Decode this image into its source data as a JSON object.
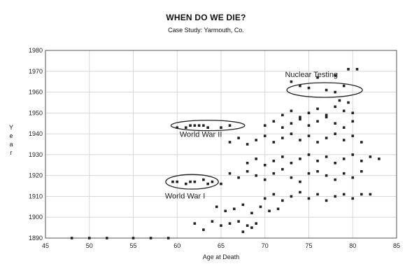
{
  "chart_data": {
    "type": "scatter",
    "title": "WHEN DO WE DIE?",
    "subtitle": "Case Study: Yarmouth, Co.",
    "xlabel": "Age at Death",
    "ylabel": "Year",
    "xlim": [
      45,
      85
    ],
    "ylim": [
      1890,
      1980
    ],
    "xticks": [
      "45",
      "50",
      "55",
      "60",
      "65",
      "70",
      "75",
      "80",
      "85"
    ],
    "yticks": [
      "1890",
      "1900",
      "1910",
      "1920",
      "1930",
      "1940",
      "1950",
      "1960",
      "1970",
      "1980"
    ],
    "grid": true,
    "marker_color": "#222222",
    "annotations": [
      {
        "text": "Nuclear Testing",
        "ellipse_center": [
          76.8,
          1961
        ],
        "ellipse_radii": [
          4.3,
          3.5
        ]
      },
      {
        "text": "World War II",
        "ellipse_center": [
          63.5,
          1944
        ],
        "ellipse_radii": [
          4.2,
          2.5
        ]
      },
      {
        "text": "World War I",
        "ellipse_center": [
          61.7,
          1917
        ],
        "ellipse_radii": [
          3.0,
          3.5
        ]
      }
    ],
    "points": [
      [
        48,
        1890
      ],
      [
        50,
        1890
      ],
      [
        52,
        1890
      ],
      [
        55,
        1890
      ],
      [
        57,
        1890
      ],
      [
        59,
        1890
      ],
      [
        73,
        1965
      ],
      [
        74,
        1963
      ],
      [
        75,
        1962
      ],
      [
        76,
        1967
      ],
      [
        77,
        1961
      ],
      [
        78,
        1960
      ],
      [
        79,
        1963
      ],
      [
        79.5,
        1971
      ],
      [
        80.5,
        1971
      ],
      [
        78,
        1968
      ],
      [
        60,
        1943
      ],
      [
        61,
        1943
      ],
      [
        61.5,
        1944
      ],
      [
        62,
        1944
      ],
      [
        62.5,
        1944
      ],
      [
        63,
        1944
      ],
      [
        63.5,
        1943
      ],
      [
        65,
        1943
      ],
      [
        66,
        1944
      ],
      [
        59.5,
        1917
      ],
      [
        60,
        1917
      ],
      [
        61,
        1916
      ],
      [
        61.5,
        1917
      ],
      [
        62,
        1917
      ],
      [
        63,
        1918
      ],
      [
        63.5,
        1916
      ],
      [
        64,
        1917
      ],
      [
        65,
        1916
      ],
      [
        62,
        1897
      ],
      [
        63,
        1894
      ],
      [
        64,
        1898
      ],
      [
        65,
        1896
      ],
      [
        66,
        1897
      ],
      [
        67,
        1898
      ],
      [
        68,
        1896
      ],
      [
        69,
        1897
      ],
      [
        68.5,
        1895
      ],
      [
        67.5,
        1893
      ],
      [
        64.5,
        1905
      ],
      [
        65.5,
        1903
      ],
      [
        66.5,
        1904
      ],
      [
        67.5,
        1906
      ],
      [
        68.5,
        1902
      ],
      [
        69.5,
        1905
      ],
      [
        70.5,
        1903
      ],
      [
        71.5,
        1904
      ],
      [
        70,
        1909
      ],
      [
        71,
        1911
      ],
      [
        72,
        1908
      ],
      [
        73,
        1910
      ],
      [
        74,
        1912
      ],
      [
        75,
        1909
      ],
      [
        76,
        1911
      ],
      [
        77,
        1908
      ],
      [
        78,
        1910
      ],
      [
        79,
        1911
      ],
      [
        80,
        1909
      ],
      [
        81,
        1911
      ],
      [
        82,
        1911
      ],
      [
        66,
        1921
      ],
      [
        67,
        1919
      ],
      [
        68,
        1922
      ],
      [
        69,
        1920
      ],
      [
        70,
        1918
      ],
      [
        71,
        1921
      ],
      [
        72,
        1923
      ],
      [
        73,
        1919
      ],
      [
        74,
        1917
      ],
      [
        75,
        1921
      ],
      [
        76,
        1922
      ],
      [
        77,
        1920
      ],
      [
        78,
        1918
      ],
      [
        79,
        1921
      ],
      [
        80,
        1919
      ],
      [
        81,
        1922
      ],
      [
        68,
        1926
      ],
      [
        69,
        1928
      ],
      [
        70,
        1925
      ],
      [
        71,
        1927
      ],
      [
        72,
        1929
      ],
      [
        73,
        1926
      ],
      [
        74,
        1928
      ],
      [
        75,
        1930
      ],
      [
        76,
        1927
      ],
      [
        77,
        1929
      ],
      [
        78,
        1926
      ],
      [
        79,
        1928
      ],
      [
        80,
        1930
      ],
      [
        81,
        1927
      ],
      [
        82,
        1929
      ],
      [
        83,
        1928
      ],
      [
        66,
        1936
      ],
      [
        67,
        1938
      ],
      [
        68,
        1935
      ],
      [
        69,
        1937
      ],
      [
        70,
        1939
      ],
      [
        71,
        1936
      ],
      [
        72,
        1938
      ],
      [
        73,
        1940
      ],
      [
        74,
        1937
      ],
      [
        75,
        1939
      ],
      [
        76,
        1936
      ],
      [
        77,
        1938
      ],
      [
        78,
        1940
      ],
      [
        79,
        1937
      ],
      [
        80,
        1939
      ],
      [
        81,
        1936
      ],
      [
        70,
        1944
      ],
      [
        71,
        1946
      ],
      [
        72,
        1943
      ],
      [
        73,
        1945
      ],
      [
        74,
        1947
      ],
      [
        75,
        1944
      ],
      [
        76,
        1946
      ],
      [
        77,
        1948
      ],
      [
        78,
        1945
      ],
      [
        79,
        1943
      ],
      [
        80,
        1946
      ],
      [
        72,
        1949
      ],
      [
        73,
        1951
      ],
      [
        74,
        1948
      ],
      [
        75,
        1950
      ],
      [
        76,
        1952
      ],
      [
        77,
        1949
      ],
      [
        78,
        1953
      ],
      [
        79,
        1951
      ],
      [
        80,
        1950
      ],
      [
        79.5,
        1955
      ],
      [
        78.5,
        1956
      ]
    ]
  }
}
